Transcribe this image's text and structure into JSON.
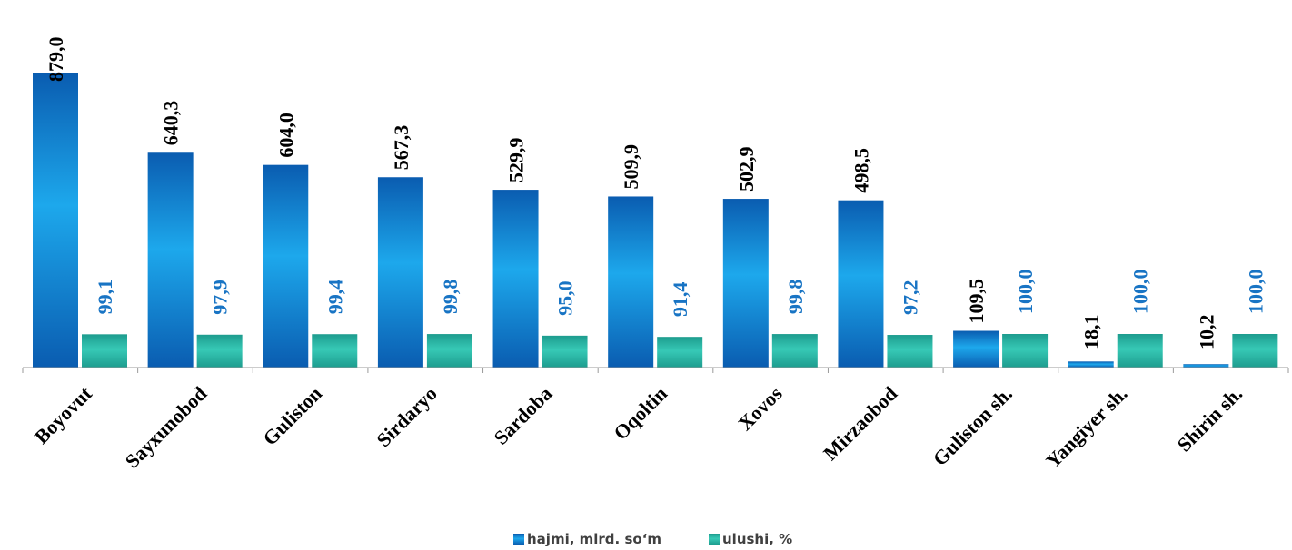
{
  "chart_data": {
    "type": "bar",
    "categories": [
      "Boyovut",
      "Sayxunobod",
      "Guliston",
      "Sirdaryo",
      "Sardoba",
      "Oqoltin",
      "Xovos",
      "Mirzaobod",
      "Guliston sh.",
      "Yangiyer sh.",
      "Shirin sh."
    ],
    "series": [
      {
        "name": "hajmi, mlrd. so‘m",
        "values": [
          879.0,
          640.3,
          604.0,
          567.3,
          529.9,
          509.9,
          502.9,
          498.5,
          109.5,
          18.1,
          10.2
        ],
        "labels": [
          "879,0",
          "640,3",
          "604,0",
          "567,3",
          "529,9",
          "509,9",
          "502,9",
          "498,5",
          "109,5",
          "18,1",
          "10,2"
        ],
        "color": "#1e7fd4",
        "label_color": "#000000"
      },
      {
        "name": "ulushi, %",
        "values": [
          99.1,
          97.9,
          99.4,
          99.8,
          95.0,
          91.4,
          99.8,
          97.2,
          100.0,
          100.0,
          100.0
        ],
        "labels": [
          "99,1",
          "97,9",
          "99,4",
          "99,8",
          "95,0",
          "91,4",
          "99,8",
          "97,2",
          "100,0",
          "100,0",
          "100,0"
        ],
        "color": "#2bb5a4",
        "label_color": "#1874c4"
      }
    ],
    "ylim": [
      0,
      880
    ],
    "grid": false,
    "legend": "bottom-center"
  }
}
